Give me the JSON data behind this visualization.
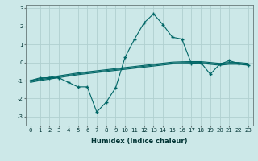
{
  "xlabel": "Humidex (Indice chaleur)",
  "ylabel": "",
  "background_color": "#cce8e8",
  "grid_color": "#b0d0d0",
  "line_color": "#006666",
  "x": [
    0,
    1,
    2,
    3,
    4,
    5,
    6,
    7,
    8,
    9,
    10,
    11,
    12,
    13,
    14,
    15,
    16,
    17,
    18,
    19,
    20,
    21,
    22,
    23
  ],
  "y_main": [
    -1.0,
    -0.85,
    -0.85,
    -0.85,
    -1.1,
    -1.35,
    -1.35,
    -2.75,
    -2.2,
    -1.4,
    0.3,
    1.3,
    2.2,
    2.7,
    2.1,
    1.4,
    1.3,
    -0.05,
    0.0,
    -0.65,
    -0.1,
    0.1,
    -0.05,
    -0.15
  ],
  "y_line1": [
    -1.0,
    -0.9,
    -0.82,
    -0.74,
    -0.66,
    -0.58,
    -0.52,
    -0.46,
    -0.4,
    -0.34,
    -0.28,
    -0.22,
    -0.16,
    -0.1,
    -0.04,
    0.02,
    0.04,
    0.05,
    0.05,
    0.0,
    -0.05,
    0.0,
    0.0,
    -0.05
  ],
  "y_line2": [
    -1.05,
    -0.95,
    -0.87,
    -0.79,
    -0.71,
    -0.63,
    -0.57,
    -0.51,
    -0.45,
    -0.39,
    -0.33,
    -0.27,
    -0.21,
    -0.15,
    -0.09,
    -0.03,
    -0.01,
    0.0,
    0.0,
    -0.05,
    -0.1,
    -0.05,
    -0.05,
    -0.1
  ],
  "y_line3": [
    -1.1,
    -1.0,
    -0.92,
    -0.84,
    -0.76,
    -0.68,
    -0.62,
    -0.56,
    -0.5,
    -0.44,
    -0.38,
    -0.32,
    -0.26,
    -0.2,
    -0.14,
    -0.08,
    -0.06,
    -0.05,
    -0.05,
    -0.1,
    -0.15,
    -0.1,
    -0.1,
    -0.15
  ],
  "ylim": [
    -3.5,
    3.2
  ],
  "xlim": [
    -0.5,
    23.5
  ],
  "yticks": [
    -3,
    -2,
    -1,
    0,
    1,
    2,
    3
  ],
  "xticks": [
    0,
    1,
    2,
    3,
    4,
    5,
    6,
    7,
    8,
    9,
    10,
    11,
    12,
    13,
    14,
    15,
    16,
    17,
    18,
    19,
    20,
    21,
    22,
    23
  ],
  "tick_fontsize": 5.0,
  "xlabel_fontsize": 6.0
}
